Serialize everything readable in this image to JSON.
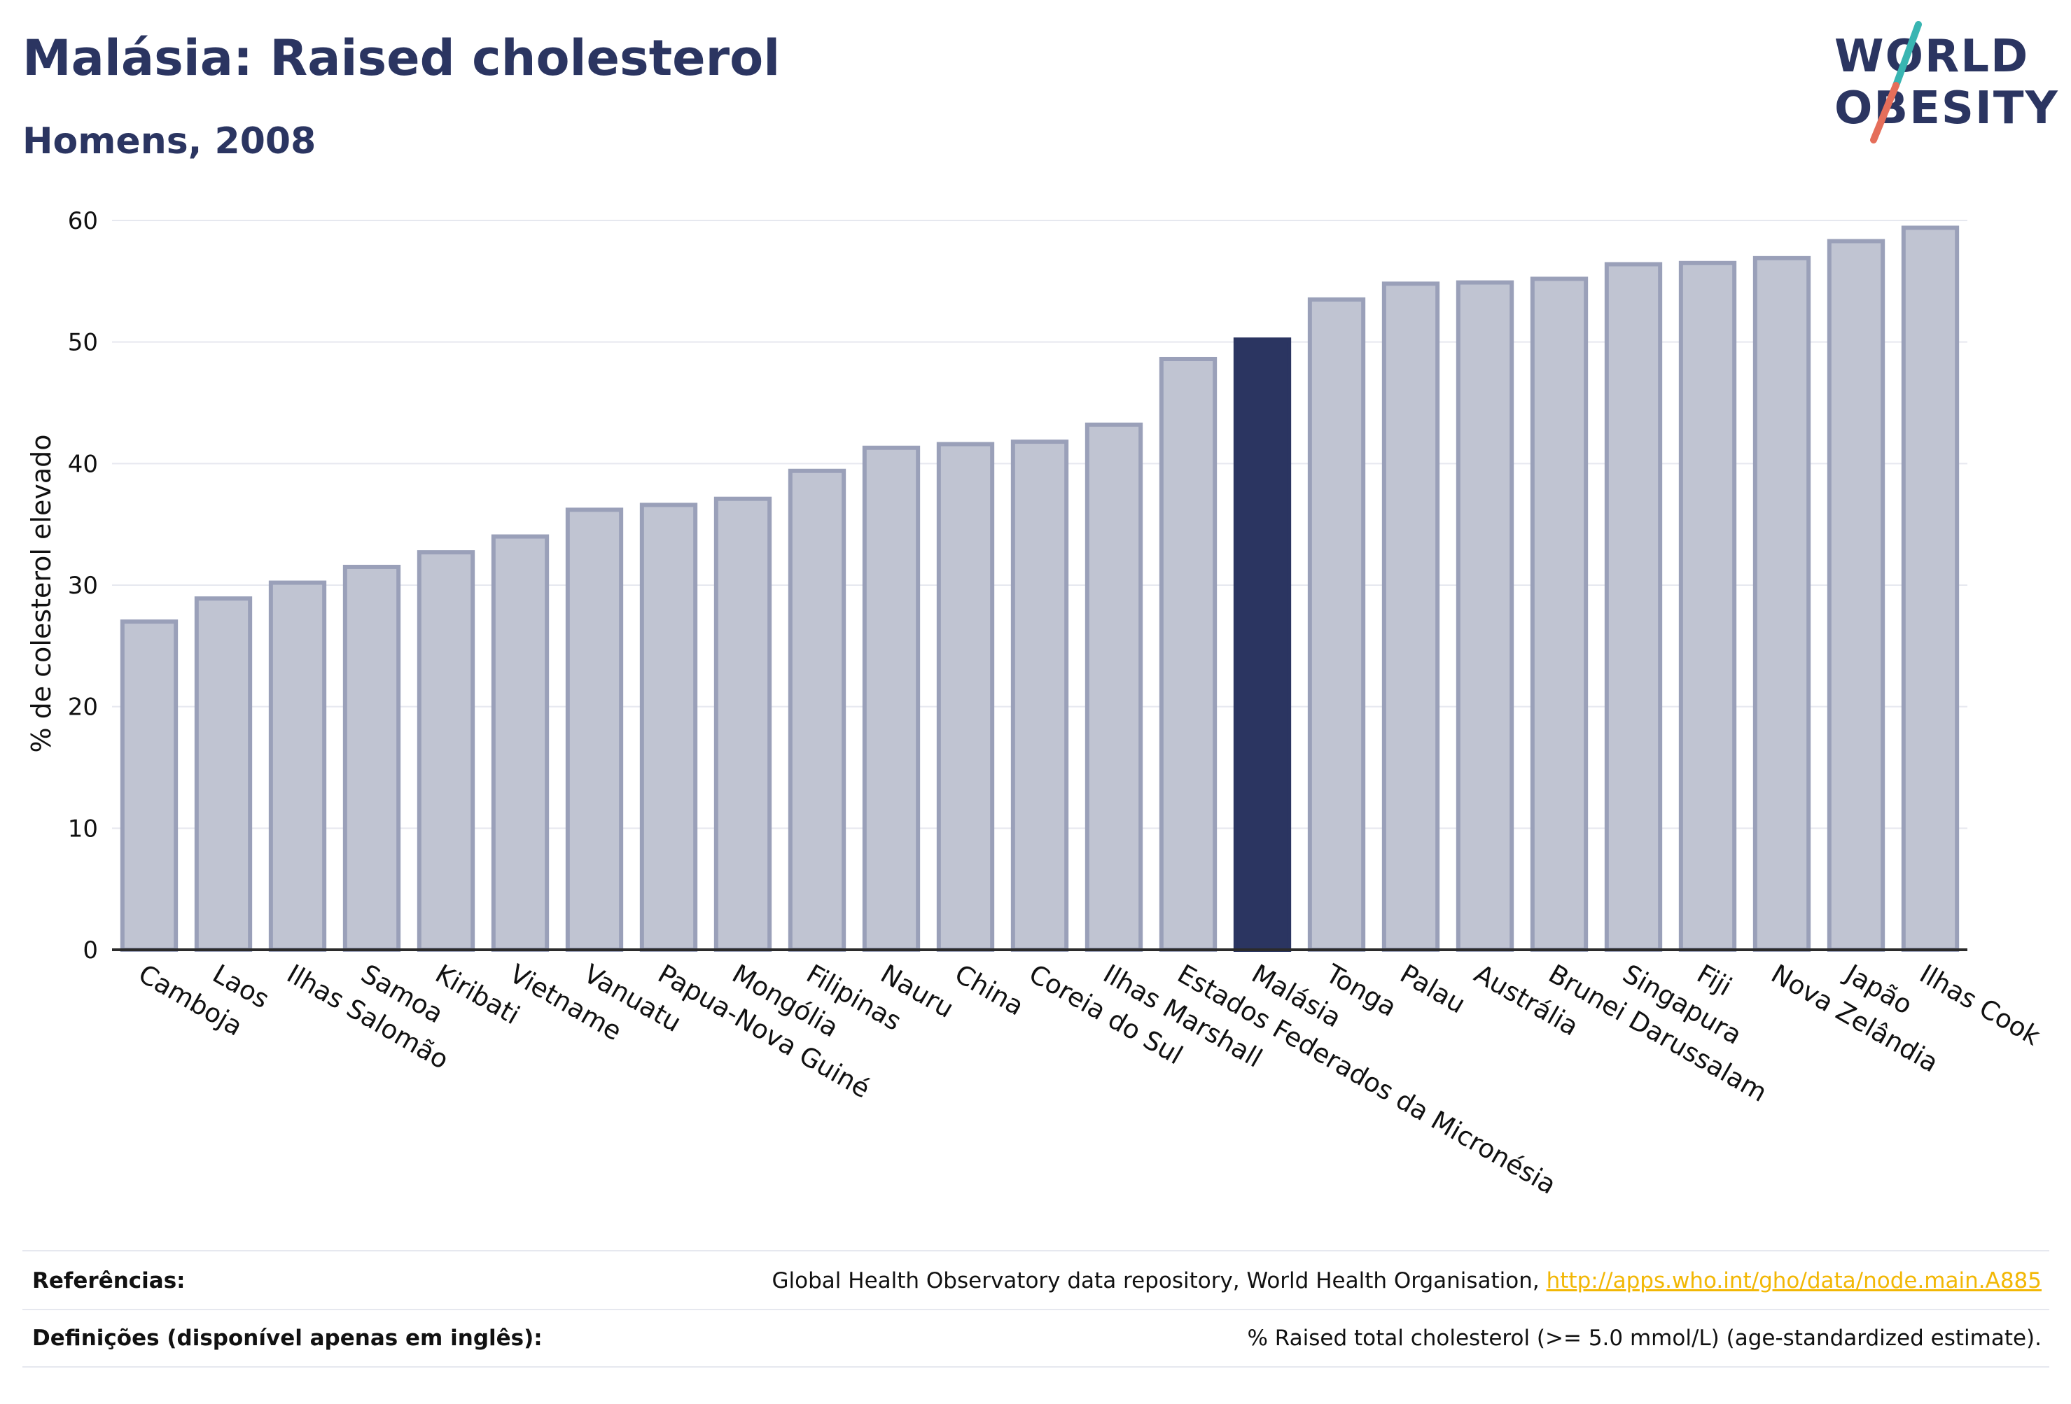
{
  "header": {
    "title": "Malásia: Raised cholesterol",
    "subtitle": "Homens, 2008"
  },
  "logo": {
    "line1": "WORLD",
    "line2": "OBESITY",
    "text_color": "#2b3561",
    "slash_top_color": "#39b5b2",
    "slash_bottom_color": "#e56e5a"
  },
  "chart_data": {
    "type": "bar",
    "title": "Malásia: Raised cholesterol",
    "subtitle": "Homens, 2008",
    "xlabel": "",
    "ylabel": "% de colesterol elevado",
    "ylim": [
      0,
      60
    ],
    "yticks": [
      0,
      10,
      20,
      30,
      40,
      50,
      60
    ],
    "grid": true,
    "categories": [
      "Camboja",
      "Laos",
      "Ilhas Salomão",
      "Samoa",
      "Kiribati",
      "Vietname",
      "Vanuatu",
      "Papua-Nova Guiné",
      "Mongólia",
      "Filipinas",
      "Nauru",
      "China",
      "Coreia do Sul",
      "Ilhas Marshall",
      "Estados Federados da Micronésia",
      "Malásia",
      "Tonga",
      "Palau",
      "Austrália",
      "Brunei Darussalam",
      "Singapura",
      "Fiji",
      "Nova Zelândia",
      "Japão",
      "Ilhas Cook"
    ],
    "values": [
      27,
      28.9,
      30.2,
      31.5,
      32.7,
      34,
      36.2,
      36.6,
      37.1,
      39.4,
      41.3,
      41.6,
      41.8,
      43.2,
      48.6,
      50.2,
      53.5,
      54.8,
      54.9,
      55.2,
      56.4,
      56.5,
      56.9,
      58.3,
      59.4
    ],
    "highlight_category": "Malásia",
    "colors": {
      "bar_fill": "#c0c4d2",
      "bar_stroke": "#9aa0b9",
      "highlight": "#2b3561",
      "grid": "#e6e8ef",
      "axis": "#2b2b2b"
    }
  },
  "footer": {
    "references_label": "Referências:",
    "references_text": "Global Health Observatory data repository, World Health Organisation, ",
    "references_link": "http://apps.who.int/gho/data/node.main.A885",
    "definitions_label": "Definições (disponível apenas em inglês):",
    "definitions_text": "% Raised total cholesterol (>= 5.0 mmol/L) (age-standardized estimate)."
  }
}
